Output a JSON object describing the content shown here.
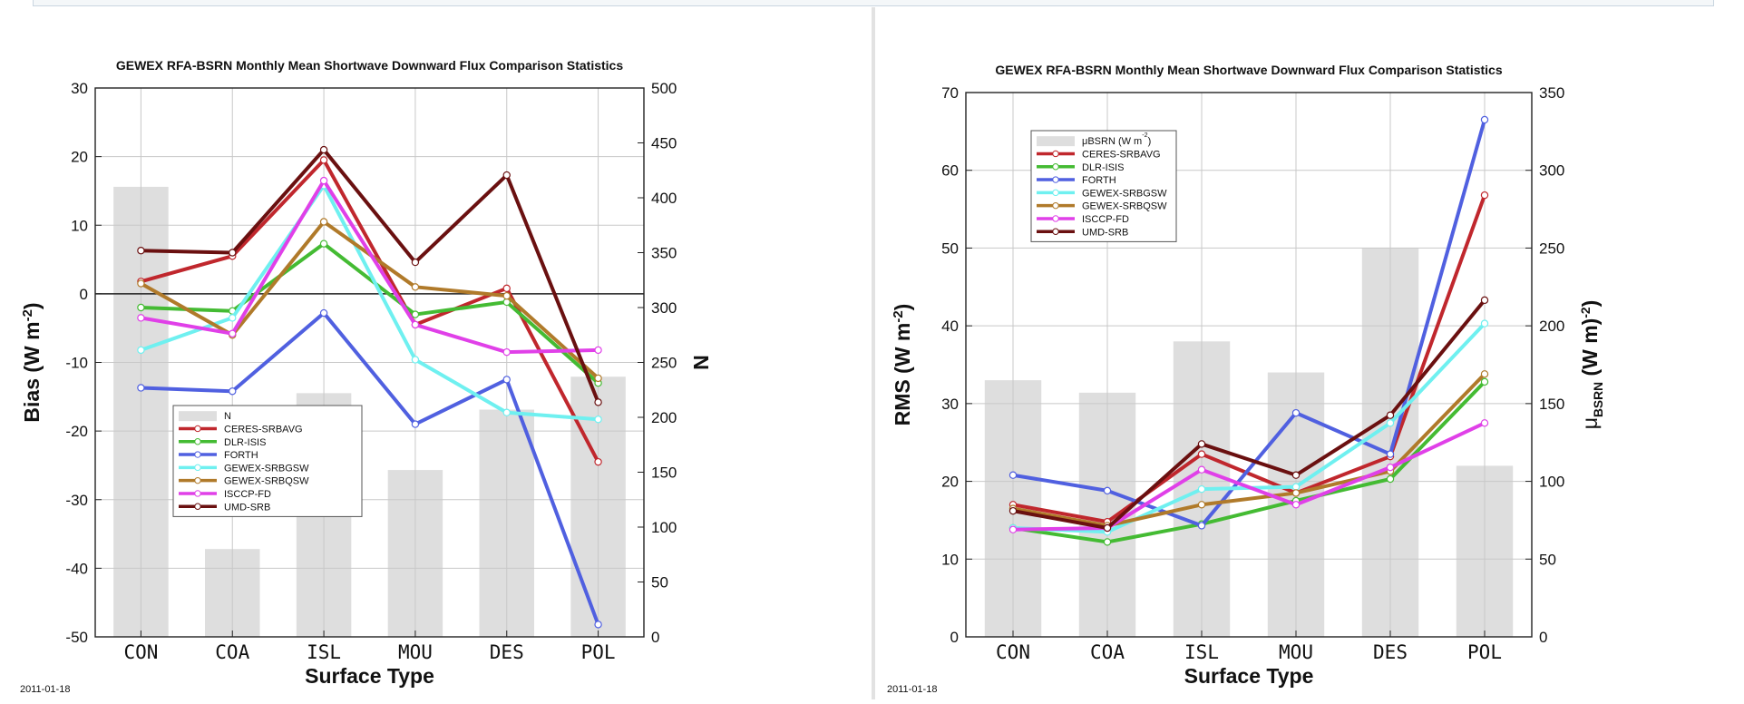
{
  "chart_data": [
    {
      "type": "line",
      "title": "GEWEX RFA-BSRN Monthly Mean Shortwave Downward Flux Comparison Statistics",
      "xlabel": "Surface Type",
      "ylabel": "Bias (W m⁻²)",
      "y2label": "N",
      "categories": [
        "CON",
        "COA",
        "ISL",
        "MOU",
        "DES",
        "POL"
      ],
      "ylim": [
        -50,
        30
      ],
      "yticks": [
        -50,
        -40,
        -30,
        -20,
        -10,
        0,
        10,
        20,
        30
      ],
      "y2lim": [
        0,
        500
      ],
      "y2ticks": [
        0,
        50,
        100,
        150,
        200,
        250,
        300,
        350,
        400,
        450,
        500
      ],
      "zero_line": true,
      "grid": true,
      "legend": "lower-left",
      "bars": {
        "name": "N",
        "axis": "right",
        "values": [
          410,
          80,
          222,
          152,
          207,
          237
        ],
        "color": "#dedede"
      },
      "series": [
        {
          "name": "CERES-SRBAVG",
          "color": "#c0272d",
          "values": [
            1.8,
            5.5,
            19.5,
            -4.5,
            0.8,
            -24.5
          ]
        },
        {
          "name": "DLR-ISIS",
          "color": "#44bb33",
          "values": [
            -2.0,
            -2.5,
            7.3,
            -3.0,
            -1.2,
            -13.0
          ]
        },
        {
          "name": "FORTH",
          "color": "#5060e0",
          "values": [
            -13.7,
            -14.2,
            -2.8,
            -19.0,
            -12.5,
            -48.2
          ]
        },
        {
          "name": "GEWEX-SRBGSW",
          "color": "#6ff0f0",
          "values": [
            -8.2,
            -3.5,
            15.8,
            -9.6,
            -17.3,
            -18.3
          ]
        },
        {
          "name": "GEWEX-SRBQSW",
          "color": "#b07a2a",
          "values": [
            1.5,
            -6.0,
            10.5,
            1.0,
            -0.3,
            -12.3
          ]
        },
        {
          "name": "ISCCP-FD",
          "color": "#e040e8",
          "values": [
            -3.5,
            -5.8,
            16.5,
            -4.5,
            -8.5,
            -8.2
          ]
        },
        {
          "name": "UMD-SRB",
          "color": "#6a1010",
          "values": [
            6.3,
            6.0,
            21.0,
            4.6,
            17.3,
            -15.8
          ]
        }
      ],
      "footnote": "2011-01-18"
    },
    {
      "type": "line",
      "title": "GEWEX RFA-BSRN Monthly Mean Shortwave Downward Flux Comparison Statistics",
      "xlabel": "Surface Type",
      "ylabel": "RMS (W m⁻²)",
      "y2label": "μBSRN (W m⁻²)",
      "categories": [
        "CON",
        "COA",
        "ISL",
        "MOU",
        "DES",
        "POL"
      ],
      "ylim": [
        0,
        70
      ],
      "yticks": [
        0,
        10,
        20,
        30,
        40,
        50,
        60,
        70
      ],
      "y2lim": [
        0,
        350
      ],
      "y2ticks": [
        0,
        50,
        100,
        150,
        200,
        250,
        300,
        350
      ],
      "zero_line": false,
      "grid": true,
      "legend": "upper-left",
      "bars": {
        "name": "μBSRN (W m⁻²)",
        "axis": "right",
        "values": [
          165,
          157,
          190,
          170,
          250,
          110
        ],
        "color": "#dedede"
      },
      "series": [
        {
          "name": "CERES-SRBAVG",
          "color": "#c0272d",
          "values": [
            17.0,
            14.8,
            23.5,
            18.5,
            23.2,
            56.8
          ]
        },
        {
          "name": "DLR-ISIS",
          "color": "#44bb33",
          "values": [
            14.0,
            12.2,
            14.5,
            17.5,
            20.3,
            32.8
          ]
        },
        {
          "name": "FORTH",
          "color": "#5060e0",
          "values": [
            20.8,
            18.8,
            14.3,
            28.8,
            23.5,
            66.5
          ]
        },
        {
          "name": "GEWEX-SRBGSW",
          "color": "#6ff0f0",
          "values": [
            14.0,
            13.5,
            19.0,
            19.3,
            27.5,
            40.3
          ]
        },
        {
          "name": "GEWEX-SRBQSW",
          "color": "#b07a2a",
          "values": [
            16.5,
            14.3,
            17.0,
            18.5,
            21.3,
            33.8
          ]
        },
        {
          "name": "ISCCP-FD",
          "color": "#e040e8",
          "values": [
            13.8,
            14.0,
            21.5,
            17.0,
            21.8,
            27.5
          ]
        },
        {
          "name": "UMD-SRB",
          "color": "#6a1010",
          "values": [
            16.2,
            14.0,
            24.8,
            20.8,
            28.5,
            43.3
          ]
        }
      ],
      "footnote": "2011-01-18"
    }
  ]
}
